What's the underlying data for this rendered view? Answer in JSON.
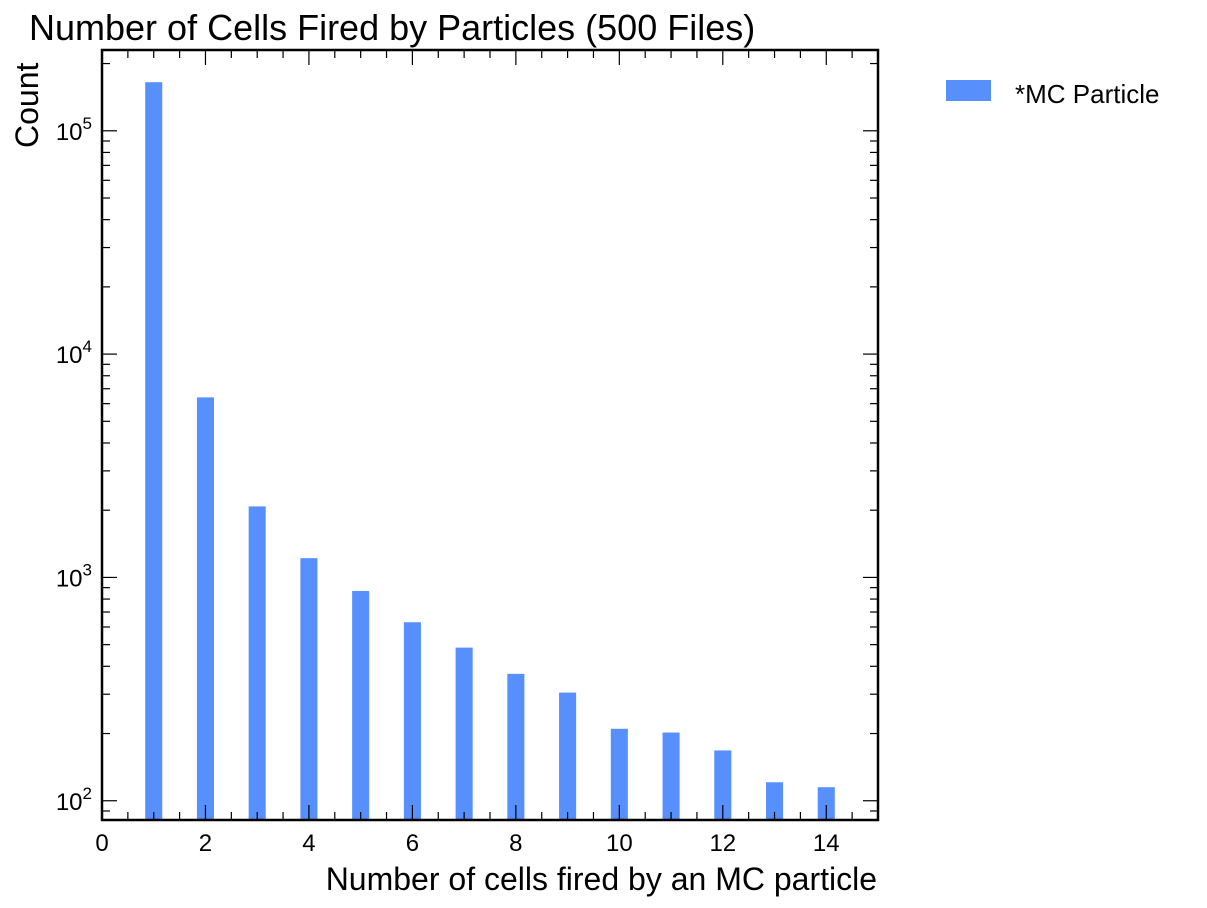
{
  "chart_data": {
    "type": "bar",
    "title": "Number of Cells Fired by Particles (500 Files)",
    "xlabel": "Number of cells fired by an MC particle",
    "ylabel": "Count",
    "x": [
      1,
      2,
      3,
      4,
      5,
      6,
      7,
      8,
      9,
      10,
      11,
      12,
      13,
      14
    ],
    "series": [
      {
        "name": "*MC Particle",
        "color": "#5790fc",
        "values": [
          165000,
          6400,
          2080,
          1220,
          870,
          630,
          485,
          370,
          305,
          210,
          202,
          168,
          121,
          115
        ]
      }
    ],
    "xlim": [
      0,
      15
    ],
    "ylim": [
      82,
      230000
    ],
    "yscale": "log",
    "xticks": [
      "0",
      "2",
      "4",
      "6",
      "8",
      "10",
      "12",
      "14"
    ],
    "yticks": [
      {
        "base": "10",
        "exp": "2"
      },
      {
        "base": "10",
        "exp": "3"
      },
      {
        "base": "10",
        "exp": "4"
      },
      {
        "base": "10",
        "exp": "5"
      }
    ],
    "bar_width": 0.33,
    "grid": false,
    "legend_placement": "outside-top-right"
  }
}
